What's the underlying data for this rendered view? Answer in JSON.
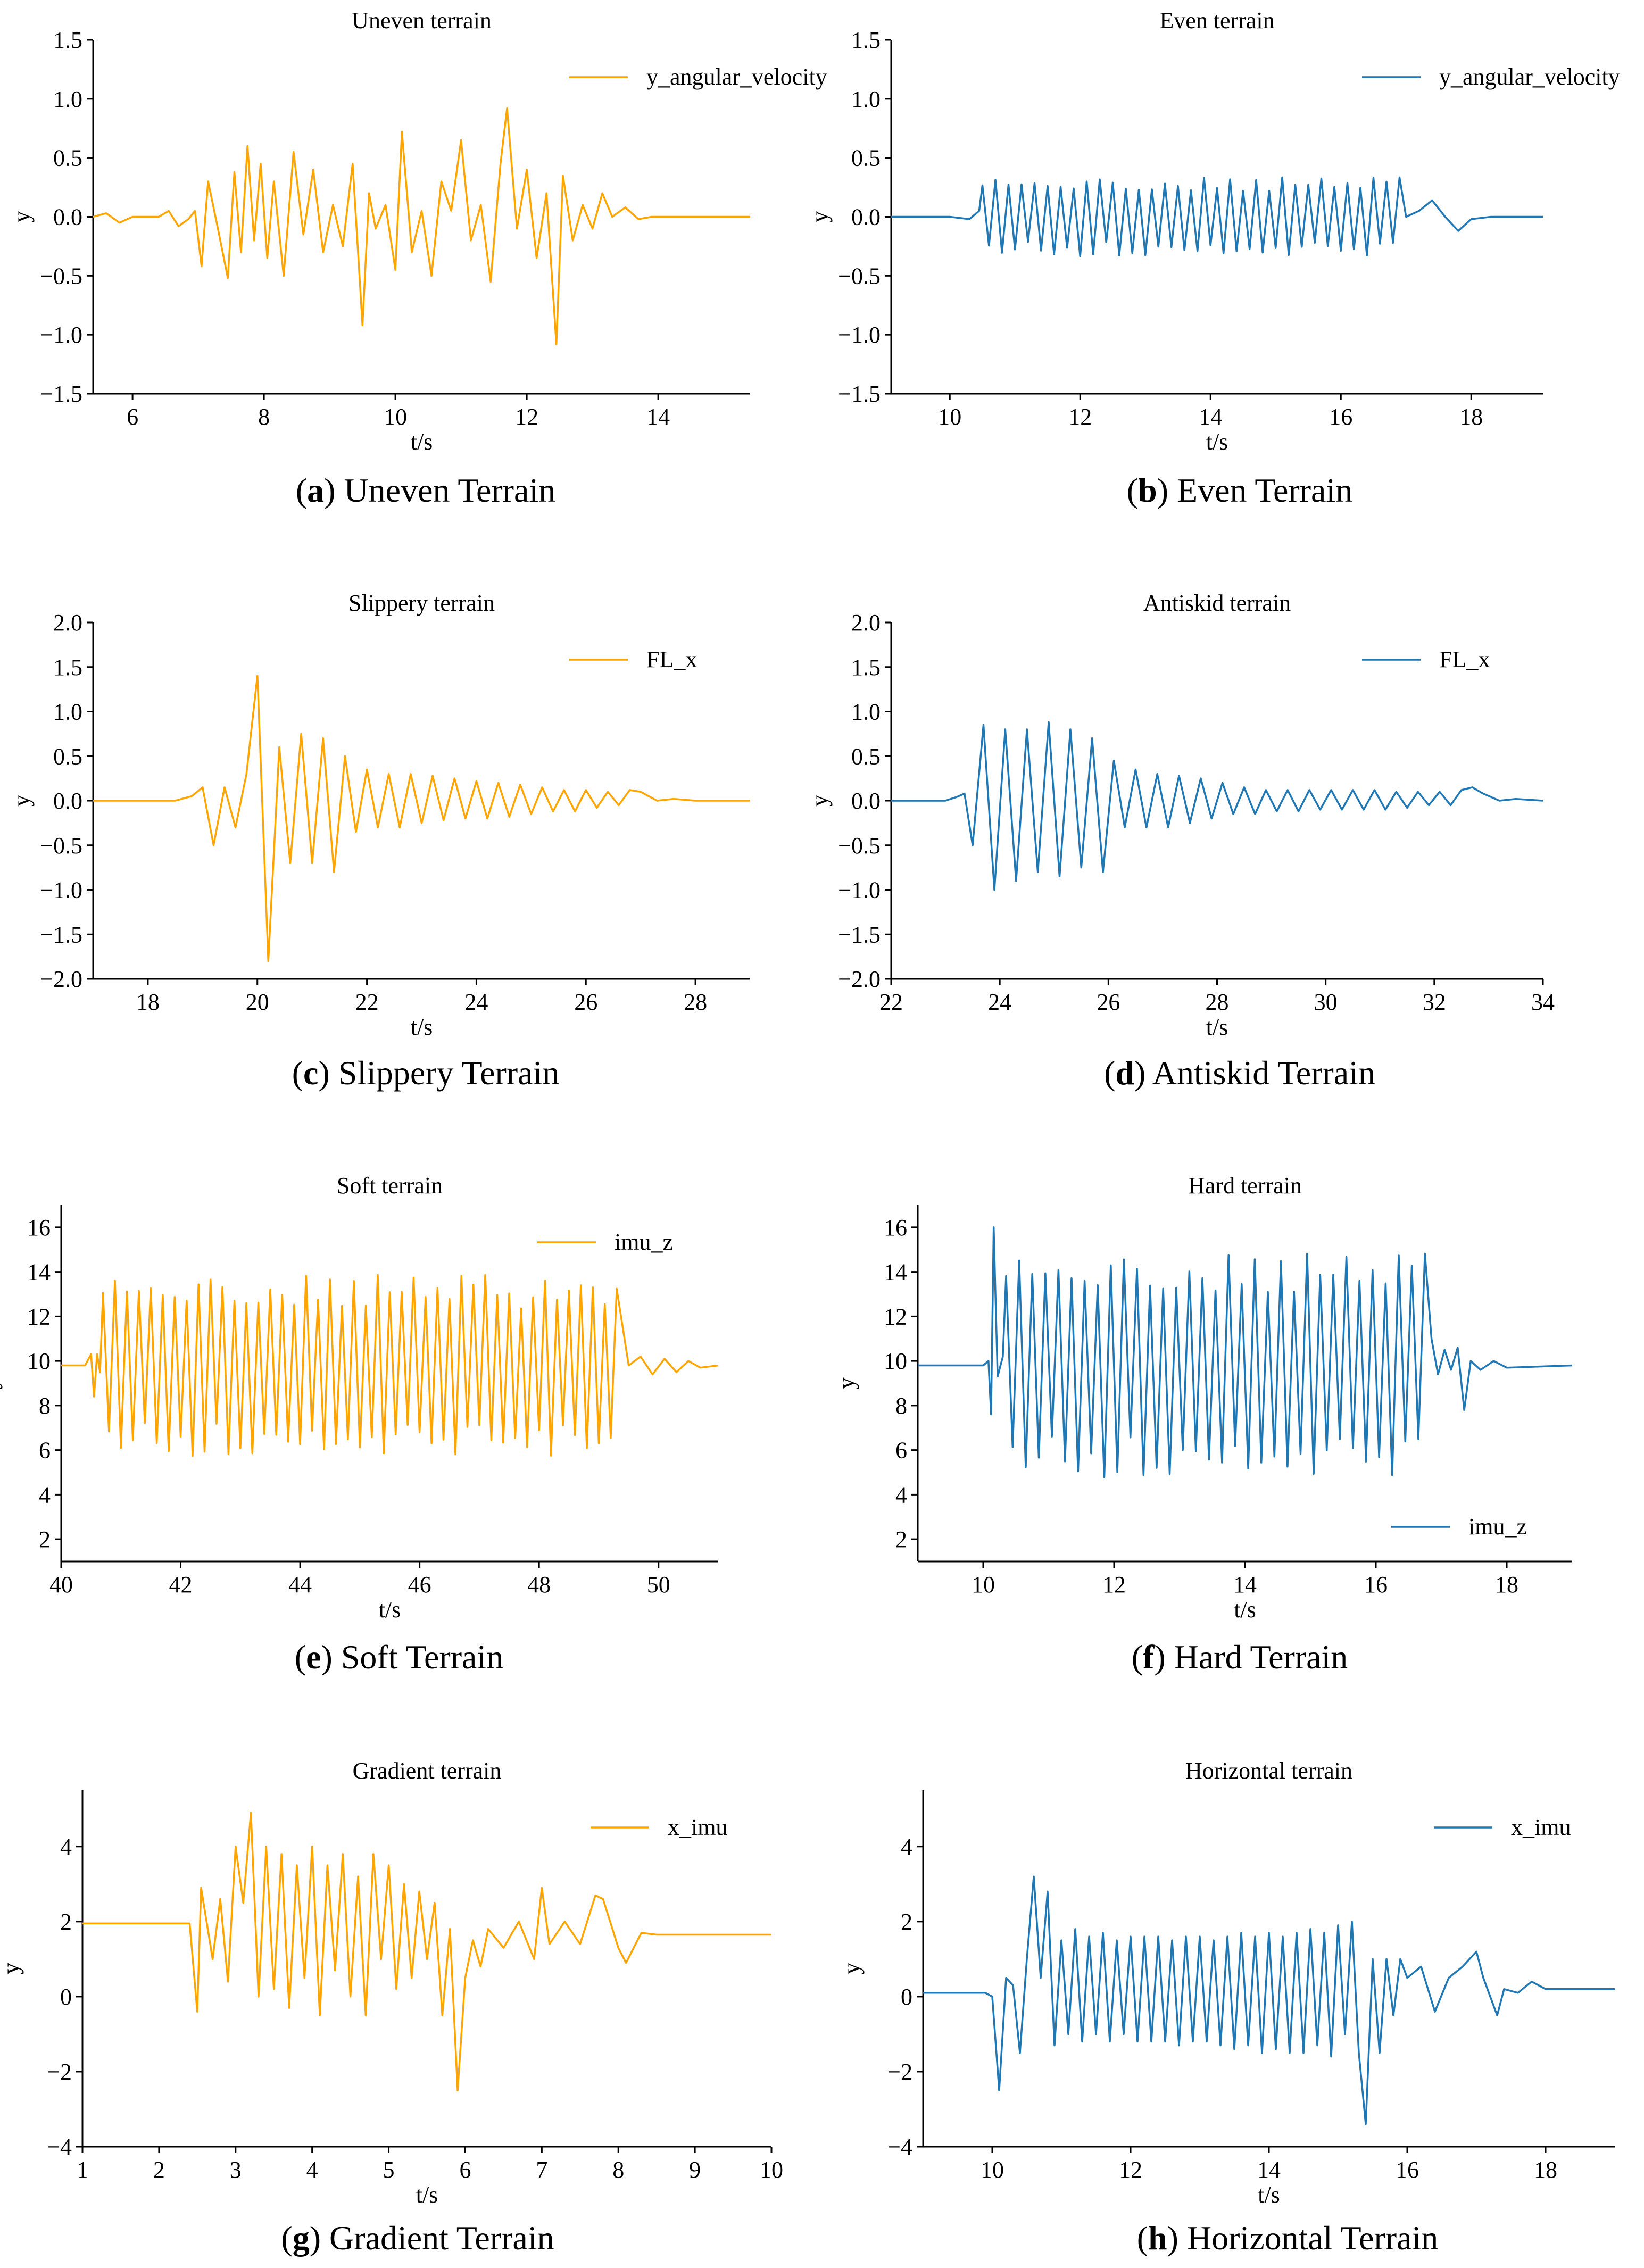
{
  "figure": {
    "colors": {
      "orange": "#FFA500",
      "blue": "#1F77B4",
      "axis": "#000000"
    },
    "captions": [
      {
        "letter": "a",
        "text": "Uneven Terrain"
      },
      {
        "letter": "b",
        "text": "Even Terrain"
      },
      {
        "letter": "c",
        "text": "Slippery Terrain"
      },
      {
        "letter": "d",
        "text": "Antiskid Terrain"
      },
      {
        "letter": "e",
        "text": "Soft Terrain"
      },
      {
        "letter": "f",
        "text": "Hard Terrain"
      },
      {
        "letter": "g",
        "text": "Gradient Terrain"
      },
      {
        "letter": "h",
        "text": "Horizontal Terrain"
      }
    ]
  },
  "chart_data": [
    {
      "type": "line",
      "title": "Uneven terrain",
      "xlabel": "t/s",
      "ylabel": "y",
      "xlim": [
        5.4,
        15.4
      ],
      "ylim": [
        -1.5,
        1.5
      ],
      "xticks": [
        "6",
        "8",
        "10",
        "12",
        "14"
      ],
      "yticks": [
        "1.5",
        "1.0",
        "0.5",
        "0.0",
        "−0.5",
        "−1.0",
        "−1.5"
      ],
      "legend": "top-right",
      "color": "orange",
      "series": [
        {
          "name": "y_angular_velocity",
          "x": [
            5.4,
            5.6,
            5.8,
            6.0,
            6.4,
            6.55,
            6.7,
            6.85,
            6.95,
            7.05,
            7.15,
            7.3,
            7.45,
            7.55,
            7.65,
            7.75,
            7.85,
            7.95,
            8.05,
            8.15,
            8.3,
            8.45,
            8.6,
            8.75,
            8.9,
            9.05,
            9.2,
            9.35,
            9.5,
            9.6,
            9.7,
            9.85,
            10.0,
            10.1,
            10.25,
            10.4,
            10.55,
            10.7,
            10.85,
            11.0,
            11.15,
            11.3,
            11.45,
            11.6,
            11.7,
            11.85,
            12.0,
            12.15,
            12.3,
            12.45,
            12.55,
            12.7,
            12.85,
            13.0,
            13.15,
            13.3,
            13.5,
            13.7,
            13.9,
            14.2,
            15.4
          ],
          "y": [
            0.0,
            0.03,
            -0.05,
            0.0,
            0.0,
            0.05,
            -0.08,
            -0.02,
            0.05,
            -0.42,
            0.3,
            -0.1,
            -0.52,
            0.38,
            -0.3,
            0.6,
            -0.2,
            0.45,
            -0.35,
            0.3,
            -0.5,
            0.55,
            -0.15,
            0.4,
            -0.3,
            0.1,
            -0.25,
            0.45,
            -0.92,
            0.2,
            -0.1,
            0.1,
            -0.45,
            0.72,
            -0.3,
            0.05,
            -0.5,
            0.3,
            0.05,
            0.65,
            -0.2,
            0.1,
            -0.55,
            0.45,
            0.92,
            -0.1,
            0.4,
            -0.35,
            0.2,
            -1.08,
            0.35,
            -0.2,
            0.1,
            -0.1,
            0.2,
            0.0,
            0.08,
            -0.02,
            0.0,
            0.0,
            0.0
          ]
        }
      ]
    },
    {
      "type": "line",
      "title": "Even terrain",
      "xlabel": "t/s",
      "ylabel": "y",
      "xlim": [
        9.1,
        19.1
      ],
      "ylim": [
        -1.5,
        1.5
      ],
      "xticks": [
        "10",
        "12",
        "14",
        "16",
        "18"
      ],
      "yticks": [
        "1.5",
        "1.0",
        "0.5",
        "0.0",
        "−0.5",
        "−1.0",
        "−1.5"
      ],
      "legend": "top-right",
      "color": "blue",
      "osc": {
        "start": 10.5,
        "end": 16.9,
        "period": 0.2,
        "amp": 0.28
      },
      "series": [
        {
          "name": "y_angular_velocity",
          "x": [
            9.1,
            10.0,
            10.3,
            10.45,
            17.0,
            17.2,
            17.4,
            17.6,
            17.8,
            18.0,
            18.3,
            19.1
          ],
          "y": [
            0.0,
            0.0,
            -0.02,
            0.05,
            0.0,
            0.05,
            0.14,
            0.0,
            -0.12,
            -0.02,
            0.0,
            0.0
          ]
        }
      ]
    },
    {
      "type": "line",
      "title": "Slippery terrain",
      "xlabel": "t/s",
      "ylabel": "y",
      "xlim": [
        17.0,
        29.0
      ],
      "ylim": [
        -2.0,
        2.0
      ],
      "xticks": [
        "18",
        "20",
        "22",
        "24",
        "26",
        "28"
      ],
      "yticks": [
        "2.0",
        "1.5",
        "1.0",
        "0.5",
        "0.0",
        "−0.5",
        "−1.0",
        "−1.5",
        "−2.0"
      ],
      "legend": "top-right",
      "color": "orange",
      "series": [
        {
          "name": "FL_x",
          "x": [
            17.0,
            18.5,
            18.8,
            19.0,
            19.2,
            19.4,
            19.6,
            19.8,
            20.0,
            20.2,
            20.4,
            20.6,
            20.8,
            21.0,
            21.2,
            21.4,
            21.6,
            21.8,
            22.0,
            22.2,
            22.4,
            22.6,
            22.8,
            23.0,
            23.2,
            23.4,
            23.6,
            23.8,
            24.0,
            24.2,
            24.4,
            24.6,
            24.8,
            25.0,
            25.2,
            25.4,
            25.6,
            25.8,
            26.0,
            26.2,
            26.4,
            26.6,
            26.8,
            27.0,
            27.3,
            27.6,
            28.0,
            29.0
          ],
          "y": [
            0.0,
            0.0,
            0.05,
            0.15,
            -0.5,
            0.15,
            -0.3,
            0.3,
            1.4,
            -1.8,
            0.6,
            -0.7,
            0.75,
            -0.7,
            0.7,
            -0.8,
            0.5,
            -0.35,
            0.35,
            -0.3,
            0.3,
            -0.3,
            0.3,
            -0.25,
            0.28,
            -0.22,
            0.25,
            -0.2,
            0.22,
            -0.2,
            0.2,
            -0.18,
            0.18,
            -0.15,
            0.15,
            -0.12,
            0.12,
            -0.12,
            0.12,
            -0.08,
            0.1,
            -0.05,
            0.12,
            0.1,
            0.0,
            0.02,
            0.0,
            0.0
          ]
        }
      ]
    },
    {
      "type": "line",
      "title": "Antiskid terrain",
      "xlabel": "t/s",
      "ylabel": "y",
      "xlim": [
        22.0,
        34.0
      ],
      "ylim": [
        -2.0,
        2.0
      ],
      "xticks": [
        "22",
        "24",
        "26",
        "28",
        "30",
        "32",
        "34"
      ],
      "yticks": [
        "2.0",
        "1.5",
        "1.0",
        "0.5",
        "0.0",
        "−0.5",
        "−1.0",
        "−1.5",
        "−2.0"
      ],
      "legend": "top-right",
      "color": "blue",
      "series": [
        {
          "name": "FL_x",
          "x": [
            22.0,
            23.0,
            23.2,
            23.35,
            23.5,
            23.7,
            23.9,
            24.1,
            24.3,
            24.5,
            24.7,
            24.9,
            25.1,
            25.3,
            25.5,
            25.7,
            25.9,
            26.1,
            26.3,
            26.5,
            26.7,
            26.9,
            27.1,
            27.3,
            27.5,
            27.7,
            27.9,
            28.1,
            28.3,
            28.5,
            28.7,
            28.9,
            29.1,
            29.3,
            29.5,
            29.7,
            29.9,
            30.1,
            30.3,
            30.5,
            30.7,
            30.9,
            31.1,
            31.3,
            31.5,
            31.7,
            31.9,
            32.1,
            32.3,
            32.5,
            32.7,
            32.9,
            33.2,
            33.5,
            34.0
          ],
          "y": [
            0.0,
            0.0,
            0.04,
            0.08,
            -0.5,
            0.85,
            -1.0,
            0.8,
            -0.9,
            0.8,
            -0.8,
            0.88,
            -0.85,
            0.8,
            -0.75,
            0.7,
            -0.8,
            0.45,
            -0.3,
            0.35,
            -0.3,
            0.3,
            -0.3,
            0.28,
            -0.25,
            0.25,
            -0.2,
            0.2,
            -0.15,
            0.15,
            -0.15,
            0.12,
            -0.12,
            0.12,
            -0.12,
            0.12,
            -0.1,
            0.12,
            -0.1,
            0.12,
            -0.1,
            0.12,
            -0.1,
            0.1,
            -0.08,
            0.1,
            -0.05,
            0.1,
            -0.05,
            0.12,
            0.15,
            0.08,
            0.0,
            0.02,
            0.0
          ]
        }
      ]
    },
    {
      "type": "line",
      "title": "Soft terrain",
      "xlabel": "t/s",
      "ylabel": "y",
      "xlim": [
        40.0,
        51.0
      ],
      "ylim": [
        1.0,
        17.0
      ],
      "xticks": [
        "40",
        "42",
        "44",
        "46",
        "48",
        "50"
      ],
      "yticks": [
        "16",
        "14",
        "12",
        "10",
        "8",
        "6",
        "4",
        "2"
      ],
      "legend": "top-right",
      "color": "orange",
      "osc": {
        "start": 40.7,
        "end": 49.4,
        "period": 0.2,
        "amp": 3.4,
        "center": 9.8
      },
      "series": [
        {
          "name": "imu_z",
          "x": [
            40.0,
            40.4,
            40.5,
            40.55,
            40.6,
            40.65,
            49.5,
            49.7,
            49.9,
            50.1,
            50.3,
            50.5,
            50.7,
            51.0
          ],
          "y": [
            9.8,
            9.8,
            10.3,
            8.4,
            10.3,
            9.5,
            9.8,
            10.2,
            9.4,
            10.1,
            9.5,
            10.0,
            9.7,
            9.8
          ]
        }
      ]
    },
    {
      "type": "line",
      "title": "Hard terrain",
      "xlabel": "t/s",
      "ylabel": "y",
      "xlim": [
        9.0,
        19.0
      ],
      "ylim": [
        1.0,
        17.0
      ],
      "xticks": [
        "10",
        "12",
        "14",
        "16",
        "18"
      ],
      "yticks": [
        "16",
        "14",
        "12",
        "10",
        "8",
        "6",
        "4",
        "2"
      ],
      "legend": "bottom-right",
      "color": "blue",
      "osc": {
        "start": 10.35,
        "end": 16.75,
        "period": 0.2,
        "amp": 4.2,
        "center": 9.8
      },
      "series": [
        {
          "name": "imu_z",
          "x": [
            9.0,
            10.0,
            10.08,
            10.12,
            10.16,
            10.22,
            10.3,
            16.85,
            16.95,
            17.05,
            17.15,
            17.25,
            17.35,
            17.45,
            17.6,
            17.8,
            18.0,
            19.0
          ],
          "y": [
            9.8,
            9.8,
            10.0,
            7.6,
            16.0,
            9.3,
            10.2,
            11.0,
            9.4,
            10.5,
            9.6,
            10.6,
            7.8,
            10.0,
            9.6,
            10.0,
            9.7,
            9.8
          ]
        }
      ]
    },
    {
      "type": "line",
      "title": "Gradient terrain",
      "xlabel": "t/s",
      "ylabel": "y",
      "xlim": [
        1.0,
        10.0
      ],
      "ylim": [
        -4.0,
        5.5
      ],
      "xticks": [
        "1",
        "2",
        "3",
        "4",
        "5",
        "6",
        "7",
        "8",
        "9",
        "10"
      ],
      "yticks": [
        "4",
        "2",
        "0",
        "−2",
        "−4"
      ],
      "legend": "top-right",
      "color": "orange",
      "series": [
        {
          "name": "x_imu",
          "x": [
            1.0,
            2.4,
            2.5,
            2.55,
            2.7,
            2.8,
            2.9,
            3.0,
            3.1,
            3.2,
            3.3,
            3.4,
            3.5,
            3.6,
            3.7,
            3.8,
            3.9,
            4.0,
            4.1,
            4.2,
            4.3,
            4.4,
            4.5,
            4.6,
            4.7,
            4.8,
            4.9,
            5.0,
            5.1,
            5.2,
            5.3,
            5.4,
            5.5,
            5.6,
            5.7,
            5.8,
            5.9,
            6.0,
            6.1,
            6.2,
            6.3,
            6.5,
            6.7,
            6.9,
            7.0,
            7.1,
            7.3,
            7.5,
            7.7,
            7.8,
            8.0,
            8.1,
            8.3,
            8.5,
            10.0
          ],
          "y": [
            1.95,
            1.95,
            -0.4,
            2.9,
            1.0,
            2.6,
            0.4,
            4.0,
            2.5,
            4.9,
            0.0,
            4.0,
            0.2,
            3.8,
            -0.3,
            3.5,
            0.5,
            4.0,
            -0.5,
            3.5,
            0.7,
            3.8,
            0.0,
            3.2,
            -0.5,
            3.8,
            1.0,
            3.5,
            0.2,
            3.0,
            0.5,
            2.8,
            1.0,
            2.5,
            -0.5,
            1.8,
            -2.5,
            0.5,
            1.5,
            0.8,
            1.8,
            1.3,
            2.0,
            1.0,
            2.9,
            1.4,
            2.0,
            1.4,
            2.7,
            2.6,
            1.3,
            0.9,
            1.7,
            1.65,
            1.65
          ]
        }
      ]
    },
    {
      "type": "line",
      "title": "Horizontal terrain",
      "xlabel": "t/s",
      "ylabel": "y",
      "xlim": [
        9.0,
        19.0
      ],
      "ylim": [
        -4.0,
        5.5
      ],
      "xticks": [
        "10",
        "12",
        "14",
        "16",
        "18"
      ],
      "yticks": [
        "4",
        "2",
        "0",
        "−2",
        "−4"
      ],
      "legend": "top-right",
      "color": "blue",
      "series": [
        {
          "name": "x_imu",
          "x": [
            9.0,
            9.9,
            10.0,
            10.1,
            10.2,
            10.3,
            10.4,
            10.5,
            10.6,
            10.7,
            10.8,
            10.9,
            11.0,
            11.1,
            11.2,
            11.3,
            11.4,
            11.5,
            11.6,
            11.7,
            11.8,
            11.9,
            12.0,
            12.1,
            12.2,
            12.3,
            12.4,
            12.5,
            12.6,
            12.7,
            12.8,
            12.9,
            13.0,
            13.1,
            13.2,
            13.3,
            13.4,
            13.5,
            13.6,
            13.7,
            13.8,
            13.9,
            14.0,
            14.1,
            14.2,
            14.3,
            14.4,
            14.5,
            14.6,
            14.7,
            14.8,
            14.9,
            15.0,
            15.1,
            15.2,
            15.3,
            15.4,
            15.5,
            15.6,
            15.7,
            15.8,
            15.9,
            16.0,
            16.2,
            16.4,
            16.6,
            16.8,
            17.0,
            17.1,
            17.2,
            17.3,
            17.4,
            17.6,
            17.8,
            18.0,
            19.0
          ],
          "y": [
            0.1,
            0.1,
            0.0,
            -2.5,
            0.5,
            0.3,
            -1.5,
            1.0,
            3.2,
            0.5,
            2.8,
            -1.3,
            1.5,
            -1.0,
            1.8,
            -1.2,
            1.6,
            -1.0,
            1.7,
            -1.2,
            1.5,
            -1.0,
            1.6,
            -1.2,
            1.6,
            -1.2,
            1.6,
            -1.2,
            1.5,
            -1.3,
            1.6,
            -1.2,
            1.6,
            -1.2,
            1.5,
            -1.3,
            1.6,
            -1.4,
            1.7,
            -1.3,
            1.6,
            -1.5,
            1.7,
            -1.4,
            1.6,
            -1.5,
            1.7,
            -1.5,
            1.8,
            -1.3,
            1.7,
            -1.6,
            1.9,
            -1.0,
            2.0,
            -1.5,
            -3.4,
            1.0,
            -1.5,
            1.0,
            -0.5,
            1.0,
            0.5,
            0.8,
            -0.4,
            0.5,
            0.8,
            1.2,
            0.5,
            0.0,
            -0.5,
            0.2,
            0.1,
            0.4,
            0.2,
            0.2
          ]
        }
      ]
    }
  ]
}
